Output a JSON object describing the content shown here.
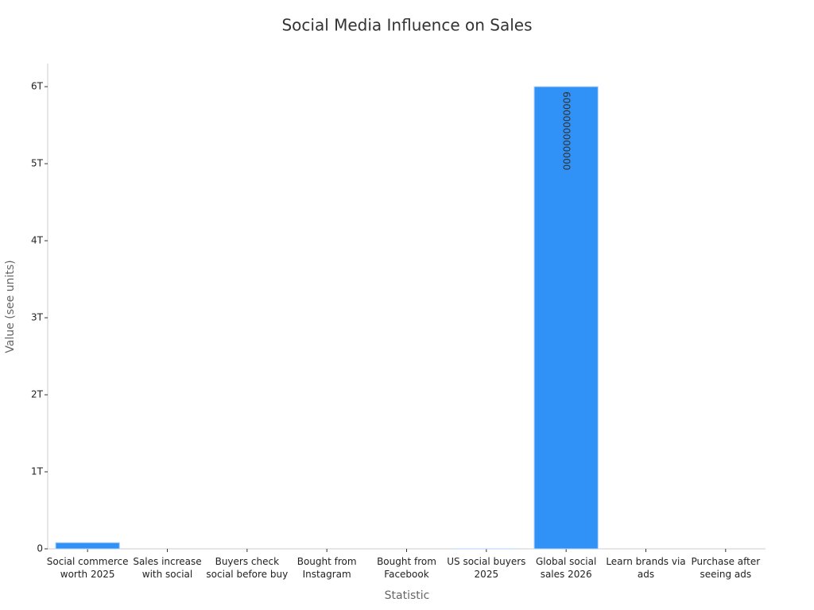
{
  "chart_data": {
    "type": "bar",
    "title": "Social Media Influence on Sales",
    "x_label": "Statistic",
    "y_label": "Value (see units)",
    "categories": [
      "Social commerce worth 2025",
      "Sales increase with social",
      "Buyers check social before buy",
      "Bought from Instagram",
      "Bought from Facebook",
      "US social buyers 2025",
      "Global social sales 2026",
      "Learn brands via ads",
      "Purchase after seeing ads"
    ],
    "values": [
      80000000000,
      50,
      76,
      44,
      40,
      114000000,
      6000000000000,
      60,
      49
    ],
    "color": "#3091f7",
    "ylim": [
      0,
      6300000000000
    ],
    "yticks": [
      0,
      {
        "value": 1000000000000,
        "label": "1T"
      },
      {
        "value": 2000000000000,
        "label": "2T"
      },
      {
        "value": 3000000000000,
        "label": "3T"
      },
      {
        "value": 4000000000000,
        "label": "4T"
      },
      {
        "value": 5000000000000,
        "label": "5T"
      },
      {
        "value": 6000000000000,
        "label": "6T"
      }
    ],
    "grid": false
  }
}
